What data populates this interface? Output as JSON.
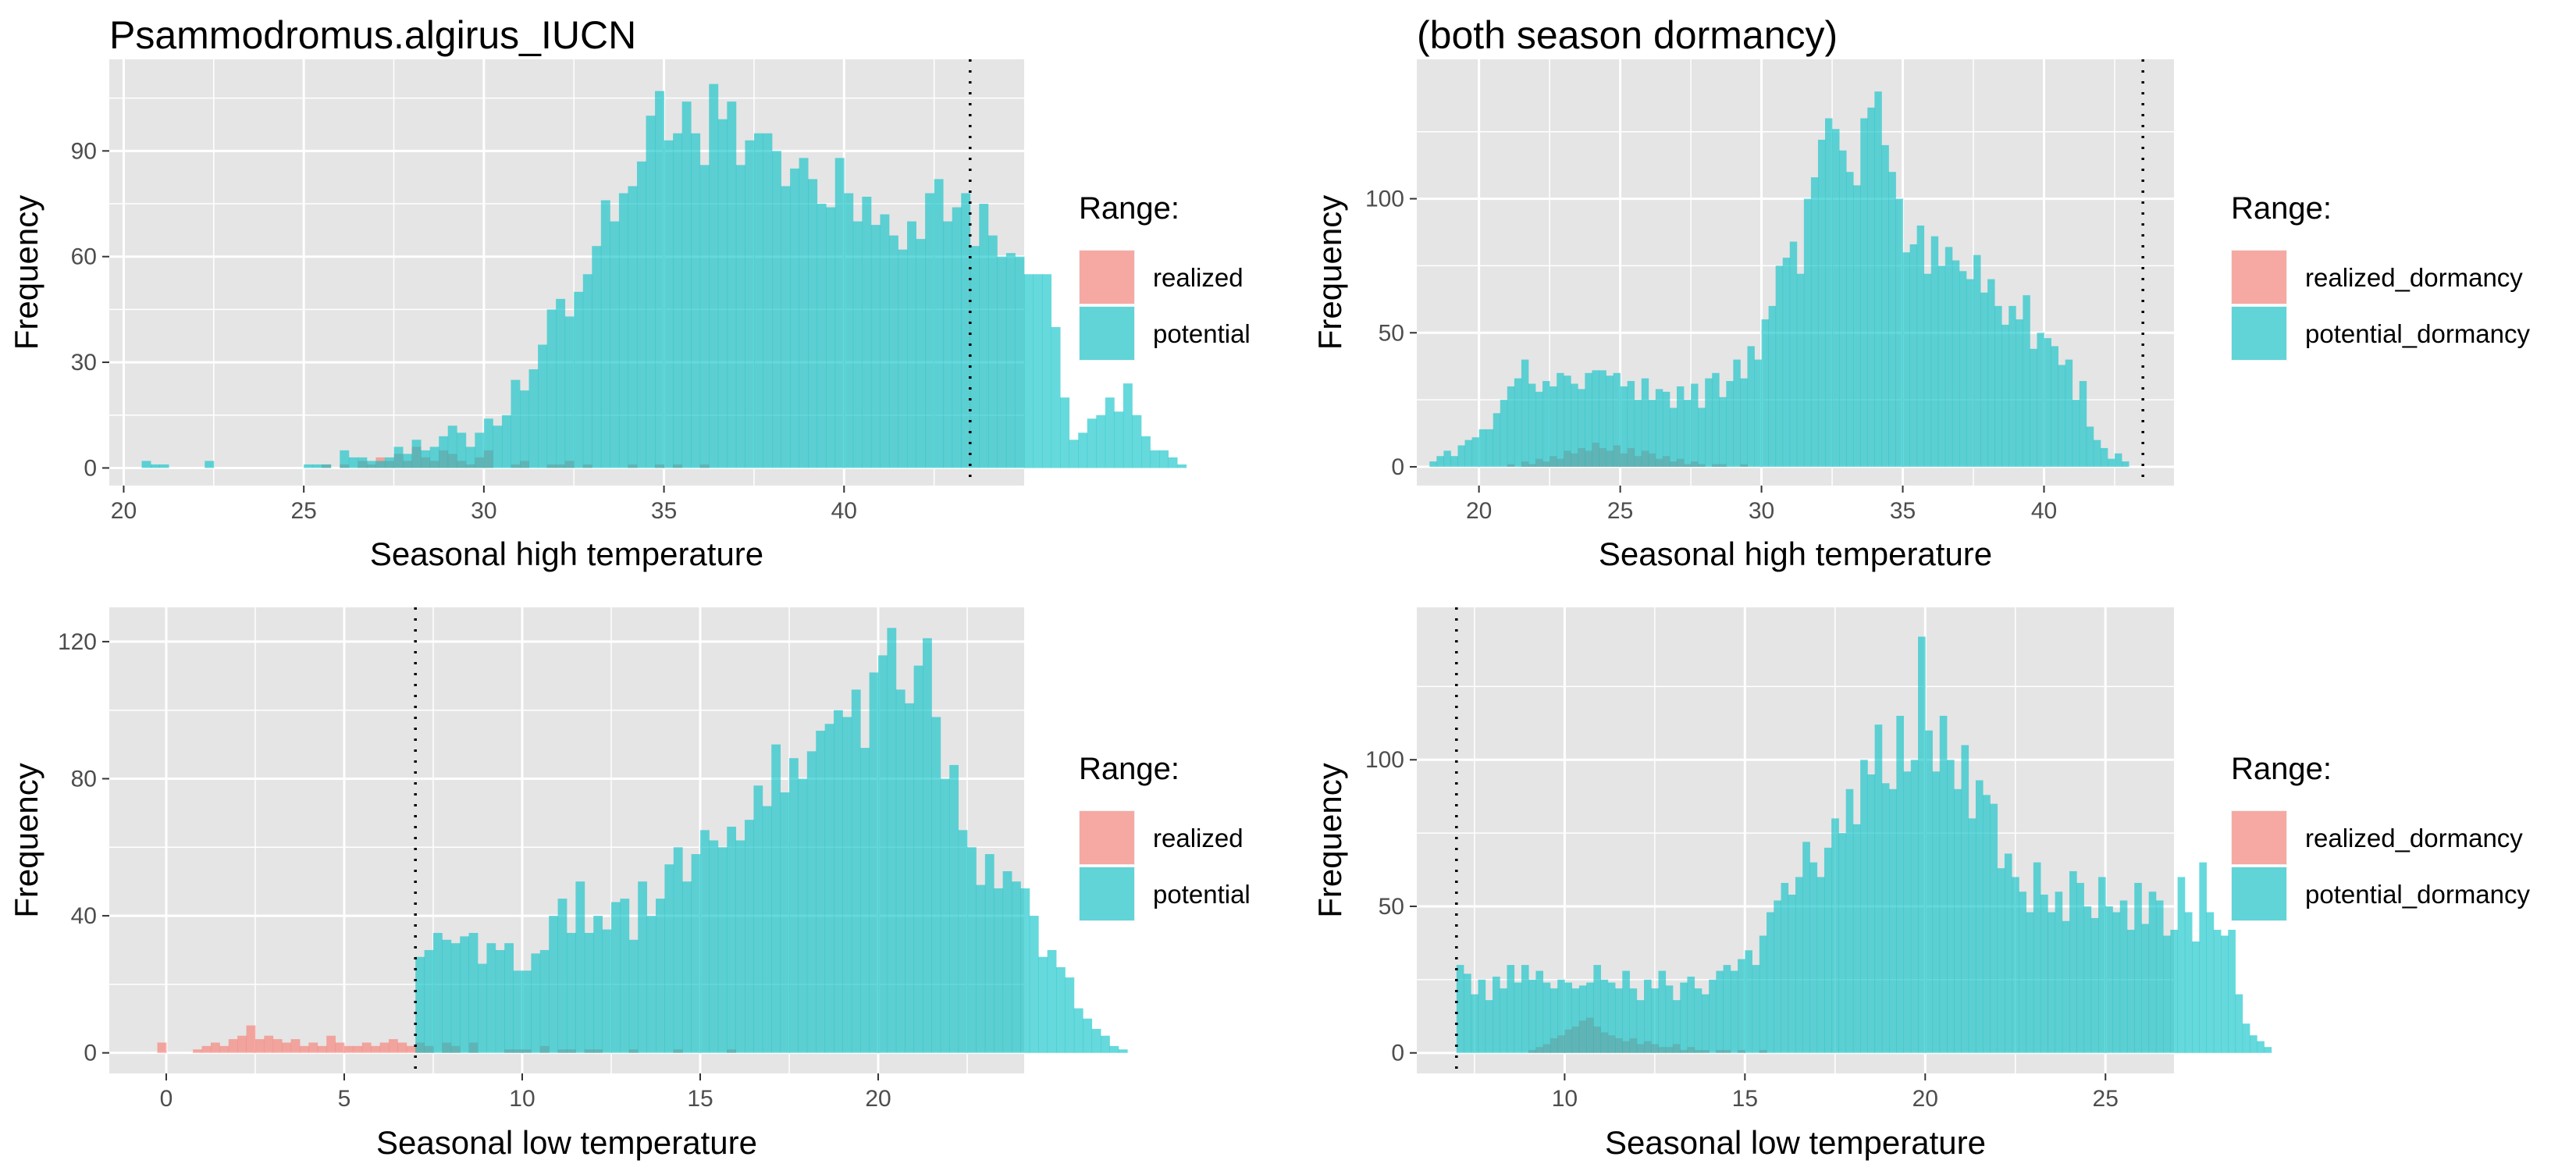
{
  "colors": {
    "panel_bg": "#E5E5E5",
    "grid": "#FFFFFF",
    "realized": "#F8766D",
    "potential": "#00BFC4",
    "tick_text": "#4D4D4D",
    "threshold_line": "#000000"
  },
  "chart_data": [
    {
      "type": "bar",
      "subtype": "histogram",
      "title": "Psammodromus.algirus_IUCN",
      "xlabel": "Seasonal high temperature",
      "ylabel": "Frequency",
      "xlim": [
        19.6,
        45.0
      ],
      "ylim": [
        -5,
        116
      ],
      "x_ticks": [
        20,
        25,
        30,
        35,
        40
      ],
      "y_ticks": [
        0,
        30,
        60,
        90
      ],
      "bin_width": 0.25,
      "threshold": 43.5,
      "legend": {
        "title": "Range:",
        "position": "right",
        "labels": [
          "realized",
          "potential"
        ]
      },
      "series": [
        {
          "name": "realized",
          "x0": 25.0,
          "values": [
            0,
            0,
            1,
            0,
            1,
            0,
            2,
            1,
            3,
            2,
            4,
            2,
            6,
            3,
            2,
            5,
            4,
            2,
            1,
            3,
            5,
            0,
            0,
            1,
            2,
            0,
            0,
            1,
            1,
            2,
            0,
            1,
            0,
            0,
            0,
            0,
            1,
            0,
            0,
            1,
            0,
            1,
            0,
            0,
            1
          ]
        },
        {
          "name": "potential",
          "x0": 20.5,
          "values": [
            2,
            1,
            1,
            0,
            0,
            0,
            0,
            2,
            0,
            0,
            0,
            0,
            0,
            0,
            0,
            0,
            0,
            0,
            1,
            1,
            1,
            0,
            5,
            3,
            3,
            2,
            2,
            3,
            6,
            4,
            8,
            5,
            6,
            9,
            12,
            10,
            6,
            10,
            14,
            12,
            15,
            25,
            22,
            28,
            35,
            45,
            48,
            43,
            50,
            55,
            63,
            76,
            70,
            78,
            80,
            87,
            100,
            107,
            93,
            95,
            104,
            95,
            86,
            109,
            99,
            104,
            86,
            93,
            95,
            95,
            90,
            80,
            85,
            88,
            82,
            75,
            74,
            88,
            78,
            70,
            77,
            69,
            72,
            66,
            62,
            70,
            65,
            78,
            82,
            70,
            74,
            78,
            63,
            75,
            66,
            60,
            61,
            60,
            55,
            55,
            55,
            40,
            20,
            8,
            10,
            14,
            15,
            20,
            16,
            24,
            15,
            9,
            5,
            5,
            3,
            1,
            0
          ]
        }
      ]
    },
    {
      "type": "bar",
      "subtype": "histogram",
      "title": "(both season dormancy)",
      "xlabel": "Seasonal high temperature",
      "ylabel": "Frequency",
      "xlim": [
        17.8,
        44.6
      ],
      "ylim": [
        -7,
        152
      ],
      "x_ticks": [
        20,
        25,
        30,
        35,
        40
      ],
      "y_ticks": [
        0,
        50,
        100
      ],
      "bin_width": 0.25,
      "threshold": 43.5,
      "legend": {
        "title": "Range:",
        "position": "right",
        "labels": [
          "realized_dormancy",
          "potential_dormancy"
        ]
      },
      "series": [
        {
          "name": "realized_dormancy",
          "x0": 21.0,
          "values": [
            1,
            0,
            2,
            1,
            3,
            2,
            4,
            3,
            6,
            5,
            7,
            6,
            9,
            7,
            6,
            8,
            5,
            7,
            4,
            6,
            5,
            3,
            4,
            2,
            3,
            1,
            2,
            1,
            0,
            1,
            1,
            0,
            0,
            1
          ]
        },
        {
          "name": "potential_dormancy",
          "x0": 18.25,
          "values": [
            2,
            4,
            6,
            4,
            8,
            10,
            11,
            14,
            14,
            20,
            25,
            30,
            33,
            40,
            31,
            28,
            32,
            30,
            35,
            34,
            31,
            29,
            35,
            36,
            36,
            34,
            35,
            30,
            32,
            25,
            33,
            25,
            29,
            28,
            22,
            30,
            25,
            31,
            22,
            33,
            35,
            26,
            32,
            40,
            33,
            45,
            40,
            55,
            60,
            75,
            78,
            84,
            72,
            100,
            108,
            122,
            130,
            126,
            118,
            110,
            105,
            130,
            134,
            140,
            120,
            110,
            100,
            80,
            83,
            90,
            72,
            86,
            75,
            82,
            77,
            73,
            70,
            79,
            65,
            70,
            60,
            53,
            60,
            55,
            64,
            44,
            50,
            48,
            45,
            38,
            40,
            25,
            32,
            15,
            10,
            7,
            3,
            5,
            2
          ]
        }
      ]
    },
    {
      "type": "bar",
      "subtype": "histogram",
      "title": "",
      "xlabel": "Seasonal low temperature",
      "ylabel": "Frequency",
      "xlim": [
        -1.6,
        24.1
      ],
      "ylim": [
        -6,
        130
      ],
      "x_ticks": [
        0,
        5,
        10,
        15,
        20
      ],
      "y_ticks": [
        0,
        40,
        80,
        120
      ],
      "bin_width": 0.25,
      "threshold": 7.0,
      "legend": {
        "title": "Range:",
        "position": "right",
        "labels": [
          "realized",
          "potential"
        ]
      },
      "series": [
        {
          "name": "realized",
          "x0": -0.25,
          "values": [
            3,
            0,
            0,
            0,
            1,
            2,
            3,
            2,
            4,
            5,
            8,
            4,
            5,
            4,
            3,
            4,
            2,
            3,
            2,
            5,
            3,
            2,
            2,
            3,
            2,
            3,
            4,
            3,
            2,
            3,
            2,
            0,
            3,
            2,
            0,
            3,
            0,
            0,
            0,
            1,
            1,
            1,
            0,
            2,
            0,
            1,
            1,
            0,
            1,
            1,
            0,
            0,
            0,
            1,
            0,
            0,
            0,
            0,
            1,
            0,
            0,
            0,
            0,
            0,
            1
          ]
        },
        {
          "name": "potential",
          "x0": 7.0,
          "values": [
            28,
            30,
            35,
            33,
            32,
            34,
            35,
            26,
            32,
            30,
            32,
            24,
            24,
            29,
            30,
            40,
            45,
            35,
            50,
            35,
            40,
            36,
            44,
            45,
            33,
            50,
            40,
            45,
            55,
            60,
            50,
            58,
            65,
            62,
            60,
            66,
            62,
            68,
            78,
            72,
            90,
            76,
            86,
            80,
            88,
            94,
            96,
            100,
            98,
            106,
            89,
            111,
            116,
            124,
            106,
            102,
            113,
            121,
            98,
            80,
            84,
            65,
            60,
            49,
            58,
            48,
            53,
            50,
            48,
            40,
            28,
            30,
            25,
            22,
            13,
            10,
            7,
            5,
            2,
            1
          ]
        }
      ]
    },
    {
      "type": "bar",
      "subtype": "histogram",
      "title": "",
      "xlabel": "Seasonal low temperature",
      "ylabel": "Frequency",
      "xlim": [
        5.9,
        26.9
      ],
      "ylim": [
        -7,
        152
      ],
      "x_ticks": [
        10,
        15,
        20,
        25
      ],
      "y_ticks": [
        0,
        50,
        100
      ],
      "bin_width": 0.2,
      "threshold": 7.0,
      "legend": {
        "title": "Range:",
        "position": "right",
        "labels": [
          "realized_dormancy",
          "potential_dormancy"
        ]
      },
      "series": [
        {
          "name": "realized_dormancy",
          "x0": 9.0,
          "values": [
            1,
            2,
            3,
            5,
            6,
            8,
            9,
            11,
            12,
            9,
            7,
            6,
            5,
            4,
            5,
            3,
            4,
            3,
            2,
            2,
            3,
            1,
            2,
            1,
            1,
            0,
            1,
            1,
            0,
            1,
            0,
            0,
            1
          ]
        },
        {
          "name": "potential_dormancy",
          "x0": 7.0,
          "values": [
            30,
            27,
            20,
            25,
            18,
            26,
            22,
            30,
            24,
            30,
            25,
            28,
            24,
            22,
            25,
            24,
            22,
            23,
            24,
            30,
            25,
            24,
            22,
            28,
            22,
            18,
            25,
            22,
            28,
            23,
            18,
            24,
            26,
            22,
            20,
            25,
            28,
            30,
            28,
            32,
            35,
            30,
            40,
            48,
            52,
            58,
            54,
            60,
            72,
            65,
            60,
            70,
            80,
            75,
            90,
            78,
            100,
            95,
            112,
            92,
            90,
            115,
            96,
            100,
            142,
            110,
            96,
            115,
            100,
            90,
            105,
            80,
            93,
            88,
            85,
            63,
            68,
            60,
            55,
            48,
            65,
            54,
            48,
            55,
            45,
            62,
            58,
            50,
            46,
            60,
            50,
            48,
            52,
            42,
            58,
            44,
            55,
            52,
            40,
            42,
            60,
            48,
            38,
            65,
            48,
            42,
            40,
            42,
            20,
            10,
            6,
            4,
            2
          ]
        }
      ]
    }
  ]
}
